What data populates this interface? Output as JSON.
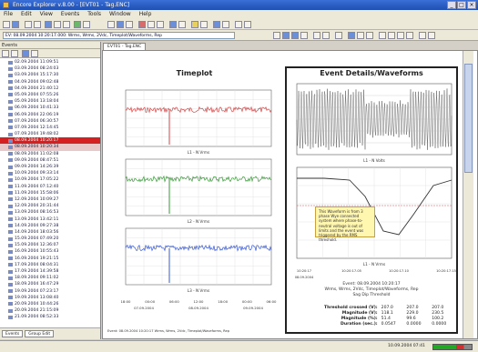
{
  "window": {
    "title": "Encore Explorer v.8.00 - [EVT01 - Tag.ENC]",
    "buttons": [
      "_",
      "□",
      "×"
    ]
  },
  "menu": [
    "File",
    "Edit",
    "View",
    "Events",
    "Tools",
    "Window",
    "Help"
  ],
  "filter_text": "EV: 08.09.2004 10:20:17.000: Wrms, Wrms, 2Vdc, Timeplot/Waveforms, Rep",
  "sidebar": {
    "header": "Events",
    "events": [
      "02.09.2004 11:09:51",
      "03.09.2004 08:24:03",
      "03.09.2004 15:17:30",
      "04.09.2004 09:02:48",
      "04.09.2004 21:40:12",
      "05.09.2004 07:55:26",
      "05.09.2004 13:18:04",
      "06.09.2004 10:41:33",
      "06.09.2004 22:06:19",
      "07.09.2004 06:30:57",
      "07.09.2004 12:14:45",
      "07.09.2004 19:48:02",
      "08.09.2004 10:20:17",
      "08.09.2004 10:20:34",
      "08.09.2004 11:02:08",
      "09.09.2004 08:47:51",
      "09.09.2004 14:26:39",
      "10.09.2004 09:33:14",
      "10.09.2004 17:05:22",
      "11.09.2004 07:12:40",
      "11.09.2004 15:58:06",
      "12.09.2004 10:09:27",
      "12.09.2004 20:31:44",
      "13.09.2004 08:16:53",
      "13.09.2004 13:42:11",
      "14.09.2004 09:27:38",
      "14.09.2004 18:03:56",
      "15.09.2004 07:49:20",
      "15.09.2004 12:36:07",
      "16.09.2004 10:55:43",
      "16.09.2004 19:21:15",
      "17.09.2004 08:04:31",
      "17.09.2004 14:39:58",
      "18.09.2004 09:11:02",
      "18.09.2004 16:47:29",
      "19.09.2004 07:23:17",
      "19.09.2004 13:08:40",
      "20.09.2004 10:44:26",
      "20.09.2004 21:15:09",
      "21.09.2004 08:52:33"
    ],
    "tabs": [
      "Events",
      "Group Edit"
    ]
  },
  "document_tab": "EVT01 - Tag.ENC",
  "timeplot": {
    "title": "Timeplot",
    "panels": [
      {
        "label": "L1 - N Vrms",
        "color": "#d24848"
      },
      {
        "label": "L2 - N Vrms",
        "color": "#3a9a3a"
      },
      {
        "label": "L3 - N Vrms",
        "color": "#3a5ad0"
      }
    ],
    "xticks": [
      "18:00",
      "00:00",
      "06:00",
      "12:00",
      "18:00",
      "00:00",
      "06:00"
    ],
    "xdates": [
      "07.09.2004",
      "08.09.2004",
      "09.09.2004"
    ],
    "footer": "Event: 08.09.2004 10:20:17 Wrms, Wrms, 2Vdc, Timeplot/Waveforms, Rep"
  },
  "event": {
    "title": "Event Details/Waveforms",
    "panels": [
      {
        "label": "L1 - N Volts"
      },
      {
        "label": "L1 - N Vrms"
      }
    ],
    "xticks": [
      "10:20:17",
      "10:20:17.05",
      "10:20:17.10",
      "10:20:17.15"
    ],
    "xdate": "08.09.2004",
    "callout": "This Waveform is from 3 phase Wye connected system where phase-to-neutral voltage is out of limits and the event was triggered by the RMS threshold.",
    "summary_line1": "Event: 08.09.2004 10:20:17",
    "summary_line2": "Wrms, Wrms, 2Vdc, Timeplot/Waveforms, Rep",
    "summary_line3": "Sag  Dip  Threshold",
    "table": {
      "rows": [
        {
          "label": "Threshold crossed (V):",
          "values": [
            "207.0",
            "207.0",
            "207.0"
          ]
        },
        {
          "label": "Magnitude (V):",
          "values": [
            "118.1",
            "229.0",
            "230.5"
          ]
        },
        {
          "label": "Magnitude (%):",
          "values": [
            "51.4",
            "99.6",
            "100.2"
          ]
        },
        {
          "label": "Duration (sec.):",
          "values": [
            "0.0547",
            "0.0000",
            "0.0000"
          ]
        }
      ]
    }
  },
  "status": {
    "time": "10.09.2004 07:41"
  }
}
